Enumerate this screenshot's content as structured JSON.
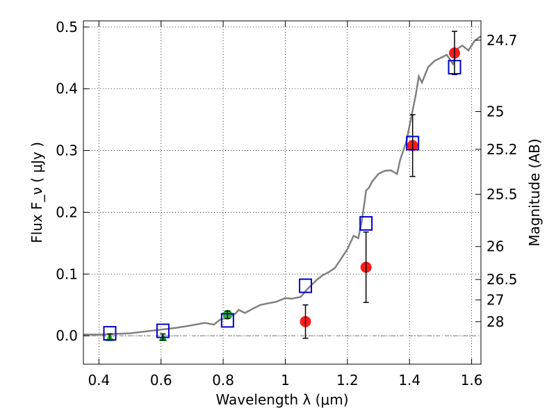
{
  "chart_data": {
    "type": "scatter",
    "xlabel": "Wavelength  λ (μm)",
    "ylabel": "Flux  F_ν ( μJy )",
    "ylabel_right": "Magnitude (AB)",
    "xlim": [
      0.35,
      1.63
    ],
    "ylim": [
      -0.046,
      0.51
    ],
    "x_ticks": [
      0.4,
      0.6,
      0.8,
      1.0,
      1.2,
      1.4,
      1.6
    ],
    "x_tick_labels": [
      "0.4",
      "0.6",
      "0.8",
      "1",
      "1.2",
      "1.4",
      "1.6"
    ],
    "y_ticks": [
      0.0,
      0.1,
      0.2,
      0.3,
      0.4,
      0.5
    ],
    "y_tick_labels": [
      "0.0",
      "0.1",
      "0.2",
      "0.3",
      "0.4",
      "0.5"
    ],
    "right_ticks": [
      {
        "label": "24.7",
        "flux": 0.4786
      },
      {
        "label": "25",
        "flux": 0.3631
      },
      {
        "label": "25.2",
        "flux": 0.302
      },
      {
        "label": "25.5",
        "flux": 0.2291
      },
      {
        "label": "26",
        "flux": 0.1445
      },
      {
        "label": "26.5",
        "flux": 0.0912
      },
      {
        "label": "27",
        "flux": 0.058
      },
      {
        "label": "28",
        "flux": 0.0229
      }
    ],
    "grid": true,
    "colors": {
      "model": "#808080",
      "synthetic": "#0000cc",
      "detection": "#ff1a1a",
      "limit": "#22bb22",
      "errorbar": "#000000"
    },
    "model_spectrum": {
      "x": [
        0.35,
        0.4,
        0.45,
        0.5,
        0.55,
        0.6,
        0.65,
        0.7,
        0.74,
        0.77,
        0.79,
        0.81,
        0.82,
        0.84,
        0.85,
        0.87,
        0.9,
        0.92,
        0.95,
        0.97,
        1.0,
        1.02,
        1.05,
        1.07,
        1.1,
        1.12,
        1.14,
        1.16,
        1.18,
        1.2,
        1.22,
        1.235,
        1.245,
        1.255,
        1.26,
        1.27,
        1.28,
        1.3,
        1.32,
        1.34,
        1.36,
        1.37,
        1.38,
        1.39,
        1.4,
        1.42,
        1.43,
        1.44,
        1.46,
        1.48,
        1.5,
        1.52,
        1.54,
        1.555,
        1.57,
        1.59,
        1.61,
        1.63
      ],
      "y": [
        0.002,
        0.002,
        0.003,
        0.004,
        0.007,
        0.01,
        0.013,
        0.017,
        0.021,
        0.018,
        0.026,
        0.029,
        0.03,
        0.036,
        0.042,
        0.037,
        0.045,
        0.05,
        0.053,
        0.055,
        0.061,
        0.06,
        0.063,
        0.075,
        0.09,
        0.098,
        0.103,
        0.11,
        0.125,
        0.14,
        0.162,
        0.158,
        0.182,
        0.215,
        0.235,
        0.24,
        0.25,
        0.262,
        0.267,
        0.268,
        0.262,
        0.285,
        0.3,
        0.315,
        0.34,
        0.39,
        0.42,
        0.41,
        0.435,
        0.445,
        0.45,
        0.455,
        0.44,
        0.465,
        0.47,
        0.462,
        0.478,
        0.485
      ]
    },
    "synthetic_photometry": {
      "x": [
        0.435,
        0.606,
        0.814,
        1.065,
        1.26,
        1.41,
        1.545
      ],
      "y": [
        0.004,
        0.008,
        0.025,
        0.081,
        0.182,
        0.312,
        0.435
      ]
    },
    "detections": [
      {
        "x": 1.065,
        "y": 0.023,
        "err": 0.027
      },
      {
        "x": 1.26,
        "y": 0.111,
        "err": 0.057
      },
      {
        "x": 1.41,
        "y": 0.308,
        "err": 0.05
      },
      {
        "x": 1.545,
        "y": 0.458,
        "err": 0.035
      }
    ],
    "optical_points": [
      {
        "x": 0.435,
        "y": -0.002,
        "err": 0.005,
        "shape": "triangle"
      },
      {
        "x": 0.606,
        "y": -0.002,
        "err": 0.005,
        "shape": "triangle"
      },
      {
        "x": 0.814,
        "y": 0.034,
        "err": 0.006,
        "shape": "circle"
      }
    ]
  }
}
